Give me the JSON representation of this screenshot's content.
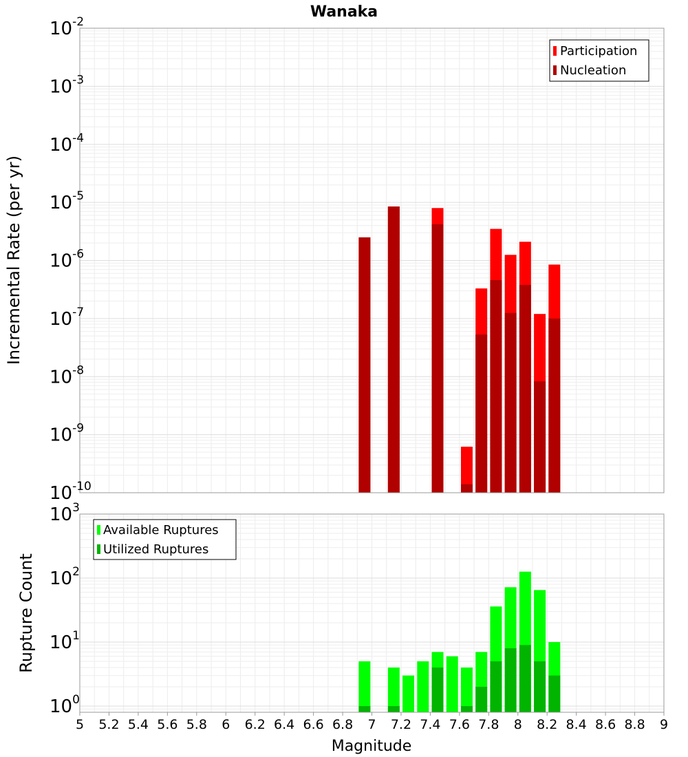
{
  "chart_data": [
    {
      "type": "bar",
      "title": "Wanaka",
      "xlabel": "Magnitude",
      "ylabel": "Incremental Rate (per yr)",
      "yscale": "log",
      "xlim": [
        5,
        9
      ],
      "ylim": [
        1e-10,
        0.01
      ],
      "ytick_exponents": [
        "-2",
        "-3",
        "-4",
        "-5",
        "-6",
        "-7",
        "-8",
        "-9",
        "-10"
      ],
      "bar_width": 0.1,
      "legend_position": "top-right",
      "series": [
        {
          "name": "Participation",
          "color": "#ff0000",
          "points": [
            {
              "x": 6.95,
              "y": 2.5e-06
            },
            {
              "x": 7.15,
              "y": 8.5e-06
            },
            {
              "x": 7.45,
              "y": 8e-06
            },
            {
              "x": 7.65,
              "y": 6.2e-10
            },
            {
              "x": 7.75,
              "y": 3.3e-07
            },
            {
              "x": 7.85,
              "y": 3.5e-06
            },
            {
              "x": 7.95,
              "y": 1.25e-06
            },
            {
              "x": 8.05,
              "y": 2.1e-06
            },
            {
              "x": 8.15,
              "y": 1.2e-07
            },
            {
              "x": 8.25,
              "y": 8.5e-07
            }
          ]
        },
        {
          "name": "Nucleation",
          "color": "#b00000",
          "points": [
            {
              "x": 6.95,
              "y": 2.5e-06
            },
            {
              "x": 7.15,
              "y": 8.5e-06
            },
            {
              "x": 7.45,
              "y": 4.2e-06
            },
            {
              "x": 7.65,
              "y": 1.4e-10
            },
            {
              "x": 7.75,
              "y": 5.3e-08
            },
            {
              "x": 7.85,
              "y": 4.6e-07
            },
            {
              "x": 7.95,
              "y": 1.25e-07
            },
            {
              "x": 8.05,
              "y": 3.8e-07
            },
            {
              "x": 8.15,
              "y": 8.3e-09
            },
            {
              "x": 8.25,
              "y": 1e-07
            }
          ]
        }
      ]
    },
    {
      "type": "bar",
      "xlabel": "Magnitude",
      "ylabel": "Rupture Count",
      "yscale": "log",
      "xlim": [
        5,
        9
      ],
      "ylim": [
        0.8,
        1000
      ],
      "ytick_exponents": [
        "3",
        "2",
        "1",
        "0"
      ],
      "xticks": [
        "5",
        "5.2",
        "5.4",
        "5.6",
        "5.8",
        "6",
        "6.2",
        "6.4",
        "6.6",
        "6.8",
        "7",
        "7.2",
        "7.4",
        "7.6",
        "7.8",
        "8",
        "8.2",
        "8.4",
        "8.6",
        "8.8",
        "9"
      ],
      "bar_width": 0.1,
      "legend_position": "top-left",
      "series": [
        {
          "name": "Available Ruptures",
          "color": "#00ff00",
          "points": [
            {
              "x": 6.95,
              "y": 5
            },
            {
              "x": 7.15,
              "y": 4
            },
            {
              "x": 7.25,
              "y": 3
            },
            {
              "x": 7.35,
              "y": 5
            },
            {
              "x": 7.45,
              "y": 7
            },
            {
              "x": 7.55,
              "y": 6
            },
            {
              "x": 7.65,
              "y": 4
            },
            {
              "x": 7.75,
              "y": 7
            },
            {
              "x": 7.85,
              "y": 36
            },
            {
              "x": 7.95,
              "y": 72
            },
            {
              "x": 8.05,
              "y": 126
            },
            {
              "x": 8.15,
              "y": 65
            },
            {
              "x": 8.25,
              "y": 10
            }
          ]
        },
        {
          "name": "Utilized Ruptures",
          "color": "#00b400",
          "points": [
            {
              "x": 6.95,
              "y": 1
            },
            {
              "x": 7.15,
              "y": 1
            },
            {
              "x": 7.45,
              "y": 4
            },
            {
              "x": 7.65,
              "y": 1
            },
            {
              "x": 7.75,
              "y": 2
            },
            {
              "x": 7.85,
              "y": 5
            },
            {
              "x": 7.95,
              "y": 8
            },
            {
              "x": 8.05,
              "y": 9
            },
            {
              "x": 8.15,
              "y": 5
            },
            {
              "x": 8.25,
              "y": 3
            }
          ]
        }
      ]
    }
  ]
}
